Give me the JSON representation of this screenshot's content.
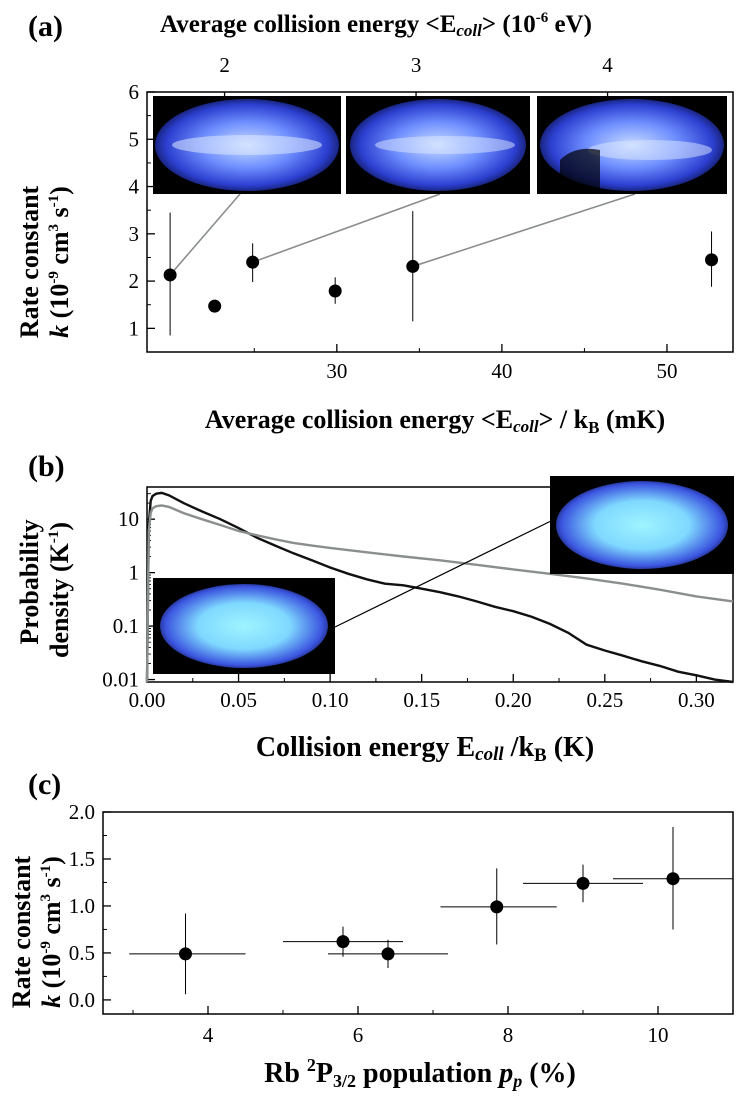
{
  "panels": {
    "a": {
      "label": "(a)",
      "top_axis": {
        "title": "Average collision energy <E",
        "title_sub": "coll",
        "title_rest": "> (10",
        "title_sup": "-6",
        "title_end": " eV)",
        "ticks": [
          "2",
          "3",
          "4"
        ]
      },
      "ylabel_line1": "Rate constant",
      "ylabel_line2_k": "k",
      "ylabel_line2": " (10",
      "ylabel_sup1": "-9",
      "ylabel_mid": " cm",
      "ylabel_sup2": "3",
      "ylabel_mid2": " s",
      "ylabel_sup3": "-1",
      "ylabel_end": ")",
      "xlabel": "Average collision energy <E",
      "xlabel_sub": "coll",
      "xlabel_rest": "> / k",
      "xlabel_sub2": "B",
      "xlabel_end": " (mK)"
    },
    "b": {
      "label": "(b)",
      "ylabel_line1": "Probability",
      "ylabel_line2": "density (K",
      "ylabel_sup": "-1",
      "ylabel_end": ")",
      "xlabel": "Collision energy E",
      "xlabel_sub": "coll",
      "xlabel_rest": " /k",
      "xlabel_sub2": "B",
      "xlabel_end": " (K)"
    },
    "c": {
      "label": "(c)",
      "ylabel_line1": "Rate constant",
      "ylabel_line2_k": "k",
      "ylabel_line2": " (10",
      "ylabel_sup1": "-9",
      "ylabel_mid": " cm",
      "ylabel_sup2": "3",
      "ylabel_mid2": " s",
      "ylabel_sup3": "-1",
      "ylabel_end": ")",
      "xlabel": "Rb ",
      "xlabel_sup": "2",
      "xlabel_mid": "P",
      "xlabel_sub": "3/2",
      "xlabel_rest": " population ",
      "xlabel_p": "p",
      "xlabel_psub": "p",
      "xlabel_end": " (%)"
    }
  },
  "chart_data": [
    {
      "id": "a",
      "type": "scatter",
      "title": "",
      "xlabel": "Average collision energy <Ecoll> / kB (mK)",
      "ylabel": "Rate constant k (10^-9 cm^3 s^-1)",
      "top_xlabel": "Average collision energy <Ecoll> (10^-6 eV)",
      "xlim": [
        18.5,
        54
      ],
      "ylim": [
        0.5,
        6
      ],
      "x_ticks": [
        30,
        40,
        50
      ],
      "y_ticks": [
        1,
        2,
        3,
        4,
        5,
        6
      ],
      "top_ticks_mK": [
        23.2,
        34.8,
        46.4
      ],
      "points": [
        {
          "x": 19.9,
          "y": 2.13,
          "yerr_lo": 0.85,
          "yerr_hi": 3.45
        },
        {
          "x": 22.6,
          "y": 1.47,
          "yerr_lo": 1.47,
          "yerr_hi": 1.47
        },
        {
          "x": 24.9,
          "y": 2.4,
          "yerr_lo": 1.98,
          "yerr_hi": 2.8
        },
        {
          "x": 29.9,
          "y": 1.79,
          "yerr_lo": 1.52,
          "yerr_hi": 2.08
        },
        {
          "x": 34.6,
          "y": 2.31,
          "yerr_lo": 1.15,
          "yerr_hi": 3.48
        },
        {
          "x": 52.7,
          "y": 2.45,
          "yerr_lo": 1.88,
          "yerr_hi": 3.05
        }
      ]
    },
    {
      "id": "b",
      "type": "line",
      "xlabel": "Collision energy Ecoll /kB (K)",
      "ylabel": "Probability density (K^-1)",
      "xlim": [
        0,
        0.32
      ],
      "ylim": [
        0.009,
        40
      ],
      "yscale": "log",
      "x_ticks": [
        "0.00",
        "0.05",
        "0.10",
        "0.15",
        "0.20",
        "0.25",
        "0.30"
      ],
      "y_ticks": [
        "0.01",
        "0.1",
        "1",
        "10"
      ],
      "y_tick_values": [
        0.01,
        0.1,
        1,
        10
      ],
      "series": [
        {
          "name": "black",
          "color": "#111111",
          "x": [
            0.0,
            0.001,
            0.002,
            0.003,
            0.005,
            0.008,
            0.012,
            0.02,
            0.03,
            0.04,
            0.05,
            0.06,
            0.07,
            0.08,
            0.09,
            0.1,
            0.11,
            0.12,
            0.13,
            0.14,
            0.15,
            0.16,
            0.17,
            0.18,
            0.19,
            0.2,
            0.21,
            0.22,
            0.23,
            0.24,
            0.25,
            0.26,
            0.27,
            0.28,
            0.29,
            0.3,
            0.31,
            0.32
          ],
          "y": [
            0.009,
            8,
            22,
            27,
            30,
            31,
            28,
            20,
            14,
            10,
            6.8,
            4.5,
            3.2,
            2.3,
            1.7,
            1.25,
            0.95,
            0.75,
            0.62,
            0.58,
            0.5,
            0.43,
            0.36,
            0.29,
            0.23,
            0.19,
            0.15,
            0.11,
            0.075,
            0.045,
            0.035,
            0.028,
            0.022,
            0.018,
            0.014,
            0.012,
            0.01,
            0.009
          ]
        },
        {
          "name": "gray",
          "color": "#8a8f8c",
          "x": [
            0.0,
            0.001,
            0.002,
            0.003,
            0.005,
            0.008,
            0.012,
            0.02,
            0.03,
            0.04,
            0.05,
            0.06,
            0.07,
            0.08,
            0.09,
            0.1,
            0.12,
            0.14,
            0.16,
            0.18,
            0.2,
            0.22,
            0.24,
            0.26,
            0.28,
            0.3,
            0.32
          ],
          "y": [
            0.009,
            6,
            13,
            16,
            17.5,
            18,
            17,
            13,
            10,
            7.8,
            6.0,
            5.0,
            4.2,
            3.6,
            3.2,
            2.9,
            2.4,
            2.0,
            1.7,
            1.4,
            1.15,
            0.95,
            0.78,
            0.62,
            0.48,
            0.36,
            0.29
          ]
        }
      ]
    },
    {
      "id": "c",
      "type": "scatter",
      "xlabel": "Rb 2P3/2 population pp (%)",
      "ylabel": "Rate constant k (10^-9 cm^3 s^-1)",
      "xlim": [
        2.6,
        11.0
      ],
      "ylim": [
        -0.15,
        2.0
      ],
      "x_ticks": [
        "4",
        "6",
        "8",
        "10"
      ],
      "x_tick_values": [
        4,
        6,
        8,
        10
      ],
      "y_ticks": [
        "0.0",
        "0.5",
        "1.0",
        "1.5",
        "2.0"
      ],
      "y_tick_values": [
        0,
        0.5,
        1.0,
        1.5,
        2.0
      ],
      "points": [
        {
          "x": 3.7,
          "y": 0.49,
          "xerr_lo": 2.95,
          "xerr_hi": 4.5,
          "yerr_lo": 0.06,
          "yerr_hi": 0.92
        },
        {
          "x": 5.8,
          "y": 0.62,
          "xerr_lo": 5.0,
          "xerr_hi": 6.6,
          "yerr_lo": 0.46,
          "yerr_hi": 0.78
        },
        {
          "x": 6.4,
          "y": 0.49,
          "xerr_lo": 5.6,
          "xerr_hi": 7.2,
          "yerr_lo": 0.34,
          "yerr_hi": 0.64
        },
        {
          "x": 7.85,
          "y": 0.99,
          "xerr_lo": 7.1,
          "xerr_hi": 8.65,
          "yerr_lo": 0.59,
          "yerr_hi": 1.4
        },
        {
          "x": 9.0,
          "y": 1.24,
          "xerr_lo": 8.2,
          "xerr_hi": 9.8,
          "yerr_lo": 1.04,
          "yerr_hi": 1.44
        },
        {
          "x": 10.2,
          "y": 1.29,
          "xerr_lo": 9.4,
          "xerr_hi": 11.0,
          "yerr_lo": 0.75,
          "yerr_hi": 1.84
        }
      ]
    }
  ]
}
